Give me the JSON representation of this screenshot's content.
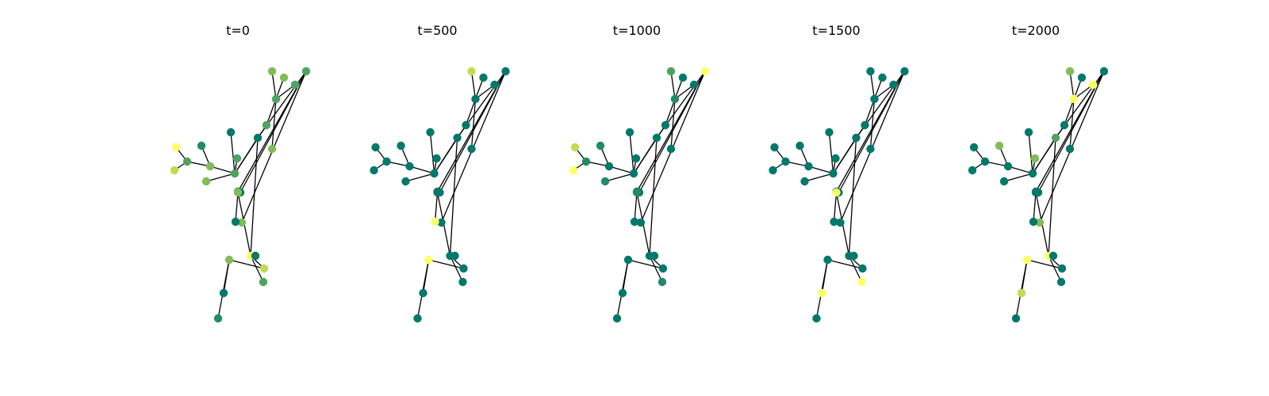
{
  "figure": {
    "panels": [
      {
        "title": "t=0"
      },
      {
        "title": "t=500"
      },
      {
        "title": "t=1000"
      },
      {
        "title": "t=1500"
      },
      {
        "title": "t=2000"
      }
    ]
  },
  "colors": {
    "edge": "#000000",
    "palette": [
      "#00796b",
      "#228b66",
      "#4ea361",
      "#80bd58",
      "#c2db52",
      "#ffff66"
    ]
  },
  "chart_data": {
    "type": "network",
    "node_count": 29,
    "edges": [
      [
        1,
        2
      ],
      [
        1,
        3
      ],
      [
        1,
        5
      ],
      [
        1,
        4
      ],
      [
        5,
        7
      ],
      [
        7,
        6
      ],
      [
        7,
        8
      ],
      [
        5,
        9
      ],
      [
        1,
        10
      ],
      [
        10,
        12
      ],
      [
        12,
        11
      ],
      [
        12,
        13
      ],
      [
        12,
        14
      ],
      [
        12,
        15
      ],
      [
        1,
        16
      ],
      [
        16,
        17
      ],
      [
        17,
        18
      ],
      [
        17,
        19
      ],
      [
        17,
        20
      ],
      [
        16,
        21
      ],
      [
        21,
        22
      ],
      [
        21,
        23
      ],
      [
        21,
        24
      ],
      [
        24,
        25
      ],
      [
        25,
        27
      ],
      [
        25,
        26
      ],
      [
        21,
        28
      ],
      [
        28,
        29
      ]
    ],
    "frames": [
      {
        "t": 0,
        "node_colors": [
          2,
          0,
          2,
          3,
          3,
          4,
          2,
          5,
          1,
          2,
          3,
          2,
          3,
          3,
          2,
          0,
          2,
          1,
          0,
          3,
          5,
          2,
          0,
          4,
          3,
          0,
          1,
          3,
          0
        ]
      },
      {
        "t": 500,
        "node_colors": [
          0,
          0,
          0,
          0,
          0,
          0,
          0,
          0,
          0,
          0,
          0,
          0,
          4,
          0,
          0,
          0,
          0,
          0,
          0,
          0,
          0,
          0,
          0,
          0,
          5,
          0,
          0,
          0,
          5
        ]
      },
      {
        "t": 1000,
        "node_colors": [
          0,
          0,
          0,
          1,
          0,
          5,
          1,
          4,
          1,
          0,
          0,
          1,
          2,
          0,
          0,
          0,
          5,
          0,
          0,
          0,
          0,
          1,
          0,
          0,
          0,
          0,
          0,
          1,
          0
        ]
      },
      {
        "t": 1500,
        "node_colors": [
          0,
          0,
          0,
          0,
          0,
          0,
          0,
          0,
          0,
          0,
          0,
          0,
          0,
          0,
          0,
          0,
          0,
          0,
          0,
          0,
          0,
          5,
          0,
          0,
          0,
          5,
          0,
          5,
          0
        ]
      },
      {
        "t": 2000,
        "node_colors": [
          0,
          0,
          3,
          0,
          0,
          0,
          0,
          0,
          3,
          0,
          0,
          5,
          3,
          0,
          5,
          2,
          0,
          0,
          0,
          3,
          5,
          0,
          0,
          0,
          5,
          4,
          0,
          0,
          0
        ]
      }
    ]
  }
}
